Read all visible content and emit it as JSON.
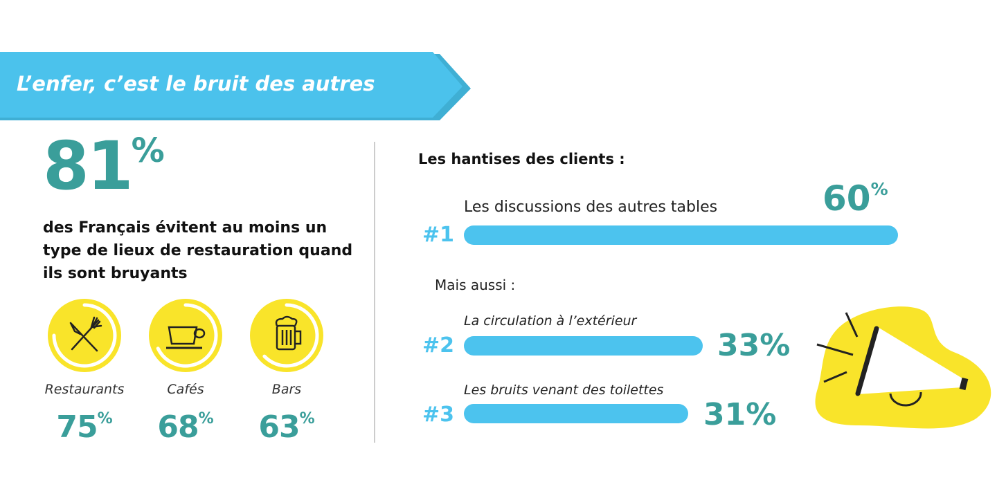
{
  "banner": {
    "title": "L’enfer, c’est le bruit des autres",
    "color": "#4bc2ec",
    "shadow_color": "#3fafd4"
  },
  "headline": {
    "value": "81",
    "unit": "%",
    "description": "des Français évitent au moins un type de lieux de restauration quand ils sont bruyants"
  },
  "venues": [
    {
      "label": "Restaurants",
      "value": "75",
      "unit": "%",
      "percent": 75,
      "icon": "cutlery-icon"
    },
    {
      "label": "Cafés",
      "value": "68",
      "unit": "%",
      "percent": 68,
      "icon": "coffee-cup-icon"
    },
    {
      "label": "Bars",
      "value": "63",
      "unit": "%",
      "percent": 63,
      "icon": "beer-mug-icon"
    }
  ],
  "colors": {
    "teal": "#3a9e9a",
    "blue": "#4cc3ee",
    "yellow": "#f9e42a"
  },
  "chart_data": {
    "type": "bar",
    "title": "Les hantises des clients :",
    "subtitle": "Mais aussi :",
    "categories": [
      "Les discussions des autres tables",
      "La circulation à l’extérieur",
      "Les bruits venant des toilettes"
    ],
    "ranks": [
      "#1",
      "#2",
      "#3"
    ],
    "values": [
      60,
      33,
      31
    ],
    "value_labels": [
      "60",
      "33%",
      "31%"
    ],
    "unit": "%"
  }
}
